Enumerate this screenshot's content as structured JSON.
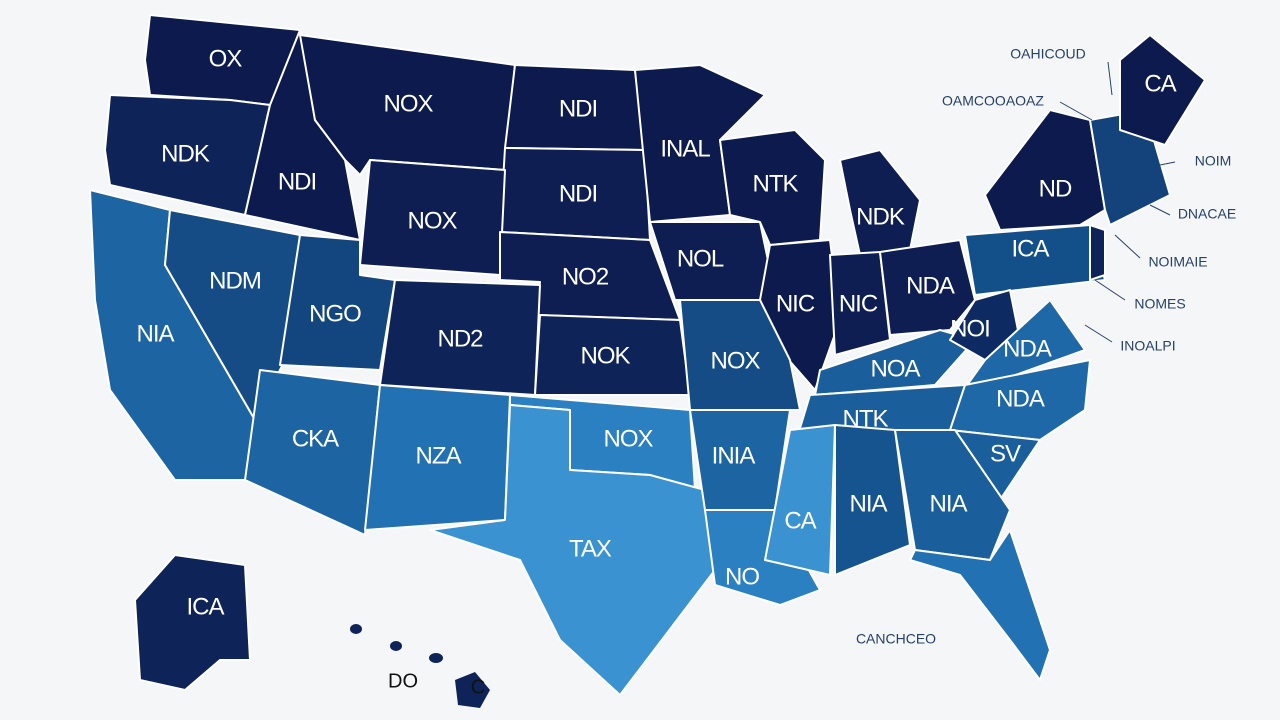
{
  "map": {
    "regions": [
      {
        "label": "OX",
        "color": "#0c1a4d"
      },
      {
        "label": "NDK",
        "color": "#0e2358"
      },
      {
        "label": "NDI",
        "color": "#0c1a4d"
      },
      {
        "label": "NOX",
        "color": "#0c1a4d"
      },
      {
        "label": "NDI",
        "color": "#0c1a4d"
      },
      {
        "label": "NDI",
        "color": "#0e1e52"
      },
      {
        "label": "NOX",
        "color": "#0e1e52"
      },
      {
        "label": "NO2",
        "color": "#0e1e52"
      },
      {
        "label": "INAL",
        "color": "#0c1a4d"
      },
      {
        "label": "NOL",
        "color": "#0e1e52"
      },
      {
        "label": "NTK",
        "color": "#0c1a4d"
      },
      {
        "label": "NDK",
        "color": "#0e1e52"
      },
      {
        "label": "NIC",
        "color": "#0c1a4d"
      },
      {
        "label": "NIC",
        "color": "#0e1e52"
      },
      {
        "label": "NDA",
        "color": "#0e1e52"
      },
      {
        "label": "ND",
        "color": "#0c1a4d"
      },
      {
        "label": "ICA",
        "color": "#13508a"
      },
      {
        "label": "",
        "color": "#14427a"
      },
      {
        "label": "CA",
        "color": "#0c1a4d"
      },
      {
        "label": "",
        "color": "#0e2358"
      },
      {
        "label": "NIA",
        "color": "#1d64a3"
      },
      {
        "label": "NDM",
        "color": "#154c86"
      },
      {
        "label": "NGO",
        "color": "#13457f"
      },
      {
        "label": "ND2",
        "color": "#0e2358"
      },
      {
        "label": "NOK",
        "color": "#0e2358"
      },
      {
        "label": "NOX",
        "color": "#154c86"
      },
      {
        "label": "NOA",
        "color": "#1a5e9c"
      },
      {
        "label": "NOI",
        "color": "#0e2a62"
      },
      {
        "label": "NDA",
        "color": "#1e68a8"
      },
      {
        "label": "NTK",
        "color": "#1a5e9c"
      },
      {
        "label": "NDA",
        "color": "#1e68a8"
      },
      {
        "label": "SV",
        "color": "#1a5e9c"
      },
      {
        "label": "CKA",
        "color": "#1d64a3"
      },
      {
        "label": "NZA",
        "color": "#2272b3"
      },
      {
        "label": "NOX",
        "color": "#2a80c0"
      },
      {
        "label": "TAX",
        "color": "#3a93d0"
      },
      {
        "label": "INIA",
        "color": "#1d64a3"
      },
      {
        "label": "NO",
        "color": "#2a80c0"
      },
      {
        "label": "CA",
        "color": "#3a93d0"
      },
      {
        "label": "NIA",
        "color": "#16548f"
      },
      {
        "label": "NIA",
        "color": "#1a5e9c"
      },
      {
        "label": "",
        "color": "#2272b3"
      },
      {
        "label": "ICA",
        "color": "#0e2358"
      }
    ],
    "inset_labels": [
      "DO",
      "C"
    ],
    "callouts": [
      "OAHICOUD",
      "OAMCOOAOAZ",
      "NOIM",
      "DNACAE",
      "NOIMAIE",
      "NOMES",
      "INOALPI",
      "CANCHCEO"
    ]
  }
}
